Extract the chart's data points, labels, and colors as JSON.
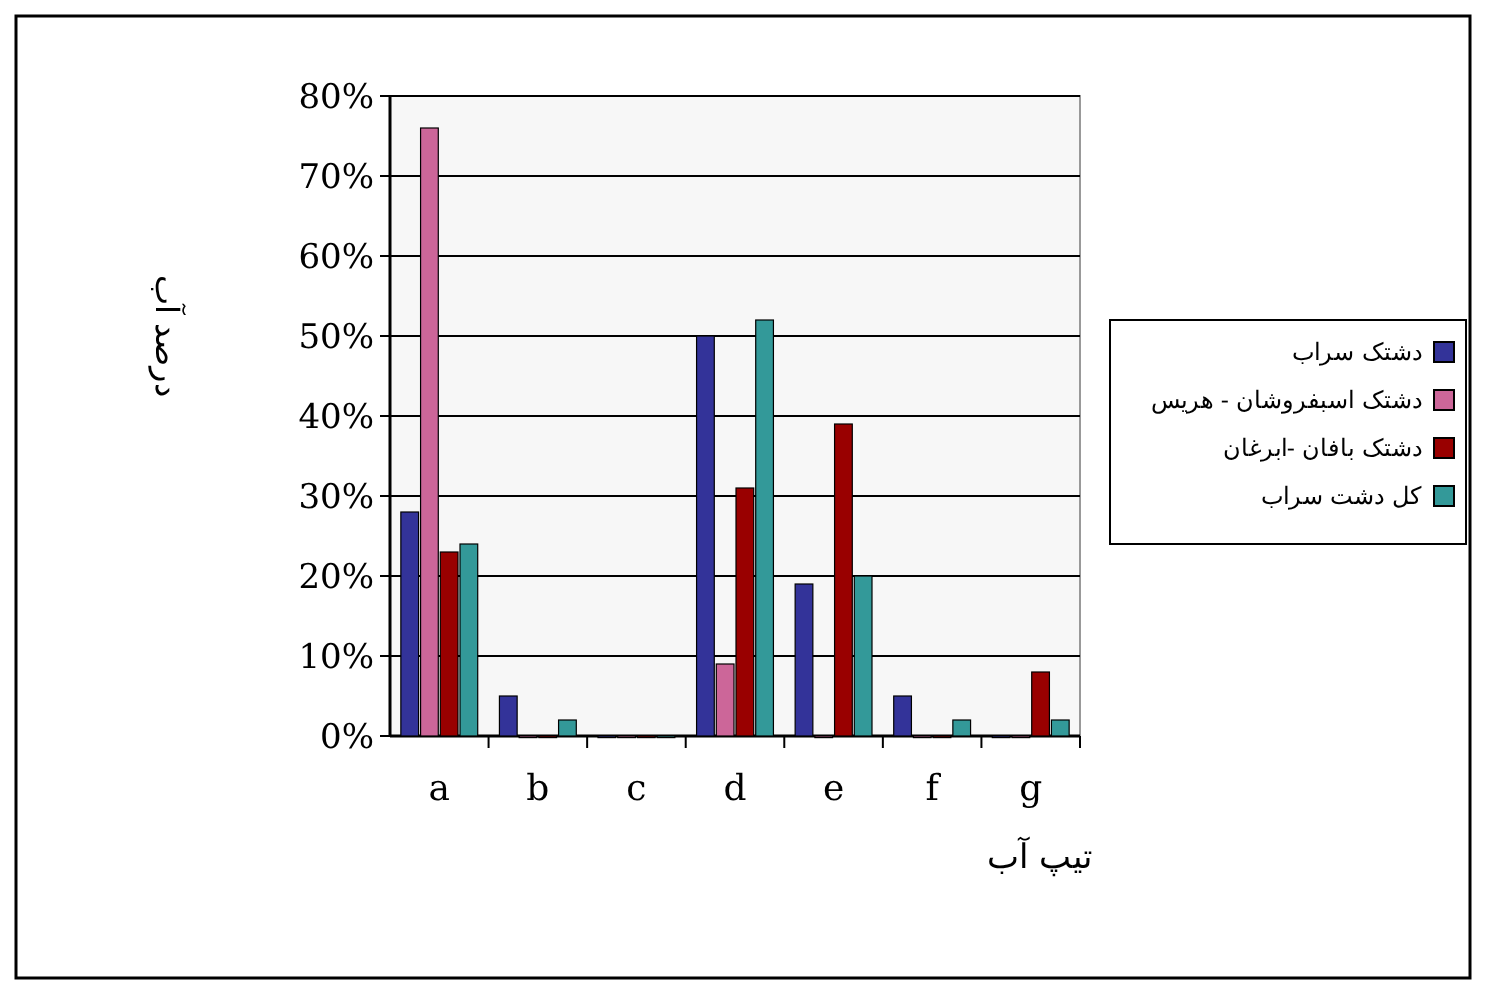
{
  "chart_data": {
    "type": "bar",
    "xlabel": "تیپ آب",
    "ylabel": "درصد آب",
    "categories": [
      "a",
      "b",
      "c",
      "d",
      "e",
      "f",
      "g"
    ],
    "series": [
      {
        "name": "دشتک سراب",
        "color": "#333399",
        "values": [
          28,
          5,
          0,
          50,
          19,
          5,
          0
        ]
      },
      {
        "name": "دشتک اسبفروشان - هریس",
        "color": "#cc6699",
        "values": [
          76,
          0,
          0,
          9,
          0,
          0,
          0
        ]
      },
      {
        "name": "دشتک بافان -ابرغان",
        "color": "#990000",
        "values": [
          23,
          0,
          0,
          31,
          39,
          0,
          8
        ]
      },
      {
        "name": "کل دشت سراب",
        "color": "#339999",
        "values": [
          24,
          2,
          0,
          52,
          20,
          2,
          2
        ]
      }
    ],
    "ylim": [
      0,
      80
    ],
    "yticks": [
      {
        "value": 0,
        "label": "0%"
      },
      {
        "value": 10,
        "label": "10%"
      },
      {
        "value": 20,
        "label": "20%"
      },
      {
        "value": 30,
        "label": "30%"
      },
      {
        "value": 40,
        "label": "40%"
      },
      {
        "value": 50,
        "label": "50%"
      },
      {
        "value": 60,
        "label": "60%"
      },
      {
        "value": 70,
        "label": "70%"
      },
      {
        "value": 80,
        "label": "80%"
      }
    ],
    "grid": "y",
    "legend": "right"
  }
}
